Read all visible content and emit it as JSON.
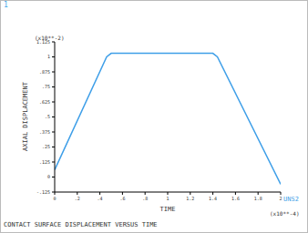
{
  "chart_data": {
    "type": "line",
    "title": "CONTACT SURFACE DISPLACEMENT VERSUS TIME",
    "xlabel": "TIME",
    "ylabel": "AXIAL DISPLACEMENT",
    "annotations": [
      "1",
      "(x10**-2)",
      "(x10**-4)"
    ],
    "x": [
      0,
      0.46,
      0.5,
      1.4,
      1.44,
      2
    ],
    "series": [
      {
        "name": "UNS2",
        "color": "#3f9fe8",
        "values": [
          0.06,
          1.0,
          1.03,
          1.03,
          1.0,
          -0.06
        ]
      }
    ],
    "xlim": [
      0,
      2
    ],
    "xticks": [
      0,
      {
        "value": 0.2,
        "label": ".2"
      },
      {
        "value": 0.4,
        "label": ".4"
      },
      {
        "value": 0.6,
        "label": ".6"
      },
      {
        "value": 0.8,
        "label": ".8"
      },
      1,
      {
        "value": 1.2,
        "label": "1.2"
      },
      {
        "value": 1.4,
        "label": "1.4"
      },
      {
        "value": 1.6,
        "label": "1.6"
      },
      {
        "value": 1.8,
        "label": "1.8"
      },
      2
    ],
    "ylim": [
      -0.125,
      1.125
    ],
    "yticks": [
      {
        "value": -0.125,
        "label": "-.125"
      },
      0,
      {
        "value": 0.125,
        "label": ".125"
      },
      {
        "value": 0.25,
        "label": ".25"
      },
      {
        "value": 0.375,
        "label": ".375"
      },
      {
        "value": 0.5,
        "label": ".5"
      },
      {
        "value": 0.625,
        "label": ".625"
      },
      {
        "value": 0.75,
        "label": ".75"
      },
      {
        "value": 0.875,
        "label": ".875"
      },
      1,
      1.125
    ],
    "grid": false
  }
}
